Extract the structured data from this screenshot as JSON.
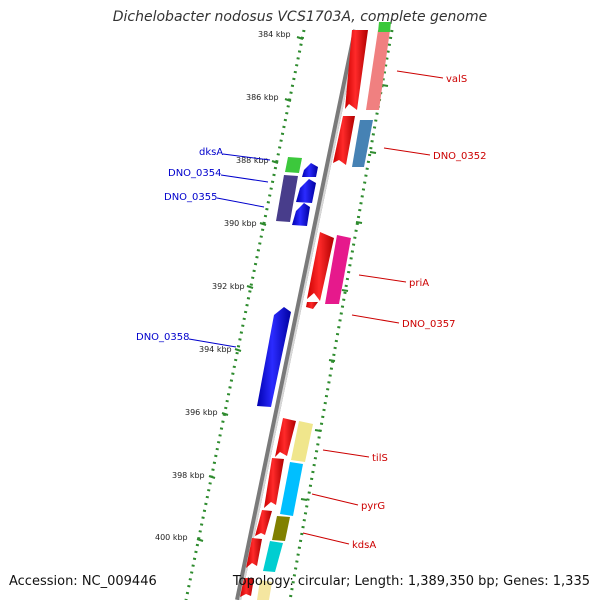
{
  "header": {
    "title": "Dichelobacter nodosus VCS1703A, complete genome"
  },
  "footer": {
    "accession": "Accession: NC_009446",
    "topology": "Topology: circular; Length: 1,389,350 bp; Genes: 1,335"
  },
  "axis": {
    "ticks": [
      "384 kbp",
      "386 kbp",
      "388 kbp",
      "390 kbp",
      "392 kbp",
      "394 kbp",
      "396 kbp",
      "398 kbp",
      "400 kbp"
    ]
  },
  "genes": {
    "forward": [
      "valS",
      "DNO_0352",
      "priA",
      "DNO_0357",
      "tilS",
      "pyrG",
      "kdsA"
    ],
    "reverse": [
      "dksA",
      "DNO_0354",
      "DNO_0355",
      "DNO_0358"
    ]
  },
  "colors": {
    "forward_label": "#cc0000",
    "reverse_label": "#0000cc",
    "backbone": "#808080",
    "dots": "#2e8b2e"
  }
}
